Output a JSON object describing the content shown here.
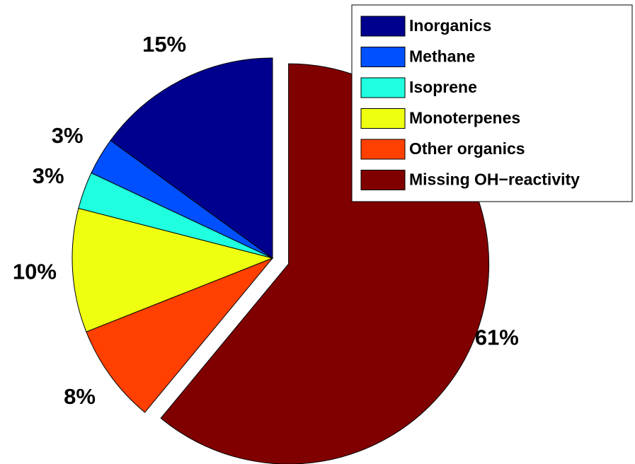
{
  "chart_data": {
    "type": "pie",
    "categories": [
      "Inorganics",
      "Methane",
      "Isoprene",
      "Monoterpenes",
      "Other organics",
      "Missing OH−reactivity"
    ],
    "values": [
      15,
      3,
      3,
      10,
      8,
      61
    ],
    "value_labels": [
      "15%",
      "3%",
      "3%",
      "10%",
      "8%",
      "61%"
    ],
    "colors": [
      "#00008f",
      "#0050ff",
      "#20ffdf",
      "#efff10",
      "#ff4000",
      "#800000"
    ],
    "explode": [
      0,
      0,
      0,
      0,
      0,
      1
    ],
    "legend": "upper right"
  }
}
